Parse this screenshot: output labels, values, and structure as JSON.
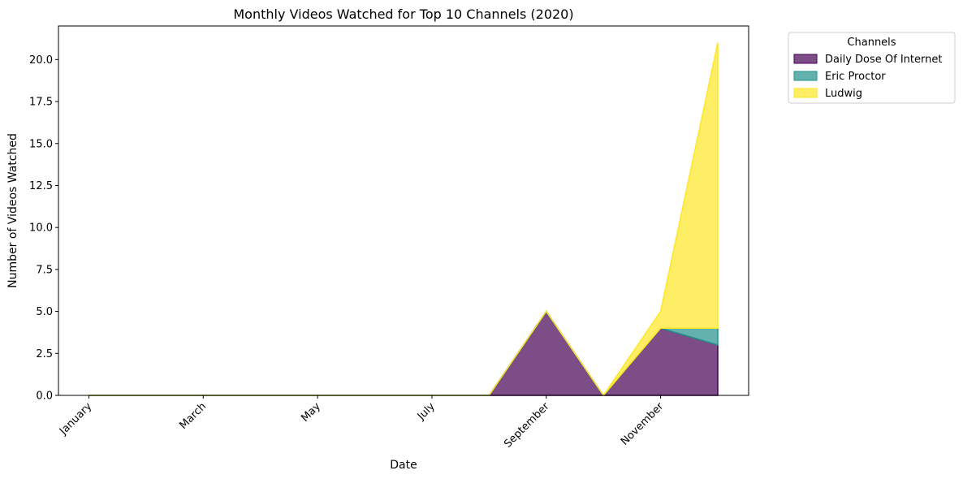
{
  "chart_data": {
    "type": "area",
    "stacked": true,
    "title": "Monthly Videos Watched for Top 10 Channels (2020)",
    "xlabel": "Date",
    "ylabel": "Number of Videos Watched",
    "x": [
      "January",
      "February",
      "March",
      "April",
      "May",
      "June",
      "July",
      "August",
      "September",
      "October",
      "November",
      "December"
    ],
    "x_tick_labels": [
      "January",
      "March",
      "May",
      "July",
      "September",
      "November"
    ],
    "y_ticks": [
      "0.0",
      "2.5",
      "5.0",
      "7.5",
      "10.0",
      "12.5",
      "15.0",
      "17.5",
      "20.0"
    ],
    "ylim": [
      0,
      22
    ],
    "legend": {
      "title": "Channels",
      "placement": "outside-top-right"
    },
    "grid": false,
    "series": [
      {
        "name": "Daily Dose Of Internet",
        "color": "#440154",
        "values": [
          0,
          0,
          0,
          0,
          0,
          0,
          0,
          0,
          5,
          0,
          4,
          3
        ]
      },
      {
        "name": "Eric Proctor",
        "color": "#21918c",
        "values": [
          0,
          0,
          0,
          0,
          0,
          0,
          0,
          0,
          0,
          0,
          0,
          1
        ]
      },
      {
        "name": "Ludwig",
        "color": "#fde725",
        "values": [
          0,
          0,
          0,
          0,
          0,
          0,
          0,
          0,
          0,
          0,
          1,
          17
        ]
      }
    ]
  }
}
